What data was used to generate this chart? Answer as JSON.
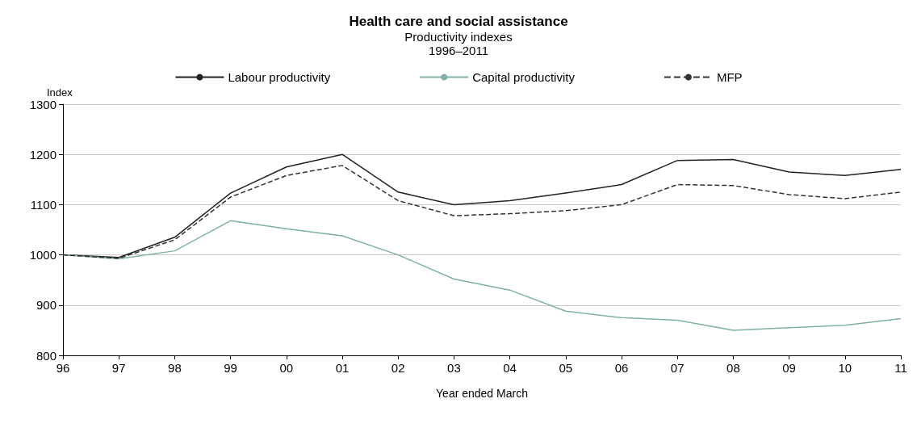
{
  "chart_data": {
    "type": "line",
    "title": "Health care and social assistance",
    "subtitle": "Productivity indexes\n1996–2011",
    "xlabel": "Year ended March",
    "ylabel": "Index",
    "categories": [
      "96",
      "97",
      "98",
      "99",
      "00",
      "01",
      "02",
      "03",
      "04",
      "05",
      "06",
      "07",
      "08",
      "09",
      "10",
      "11"
    ],
    "series": [
      {
        "name": "Labour productivity",
        "color": "#222222",
        "line_style": "solid",
        "values": [
          1000,
          995,
          1035,
          1123,
          1175,
          1200,
          1125,
          1100,
          1108,
          1123,
          1140,
          1188,
          1190,
          1165,
          1158,
          1170
        ]
      },
      {
        "name": "Capital productivity",
        "color": "#7fb0a8",
        "line_style": "solid",
        "values": [
          1000,
          992,
          1008,
          1068,
          1052,
          1038,
          1000,
          952,
          930,
          888,
          875,
          870,
          850,
          855,
          860,
          873
        ]
      },
      {
        "name": "MFP",
        "color": "#333333",
        "line_style": "dashed",
        "values": [
          1000,
          993,
          1030,
          1115,
          1158,
          1178,
          1108,
          1078,
          1082,
          1088,
          1100,
          1140,
          1138,
          1120,
          1112,
          1125
        ]
      }
    ],
    "ylim": [
      800,
      1300
    ],
    "yticks": [
      800,
      900,
      1000,
      1100,
      1200,
      1300
    ],
    "grid": "y",
    "legend": "top",
    "marker": "none"
  }
}
